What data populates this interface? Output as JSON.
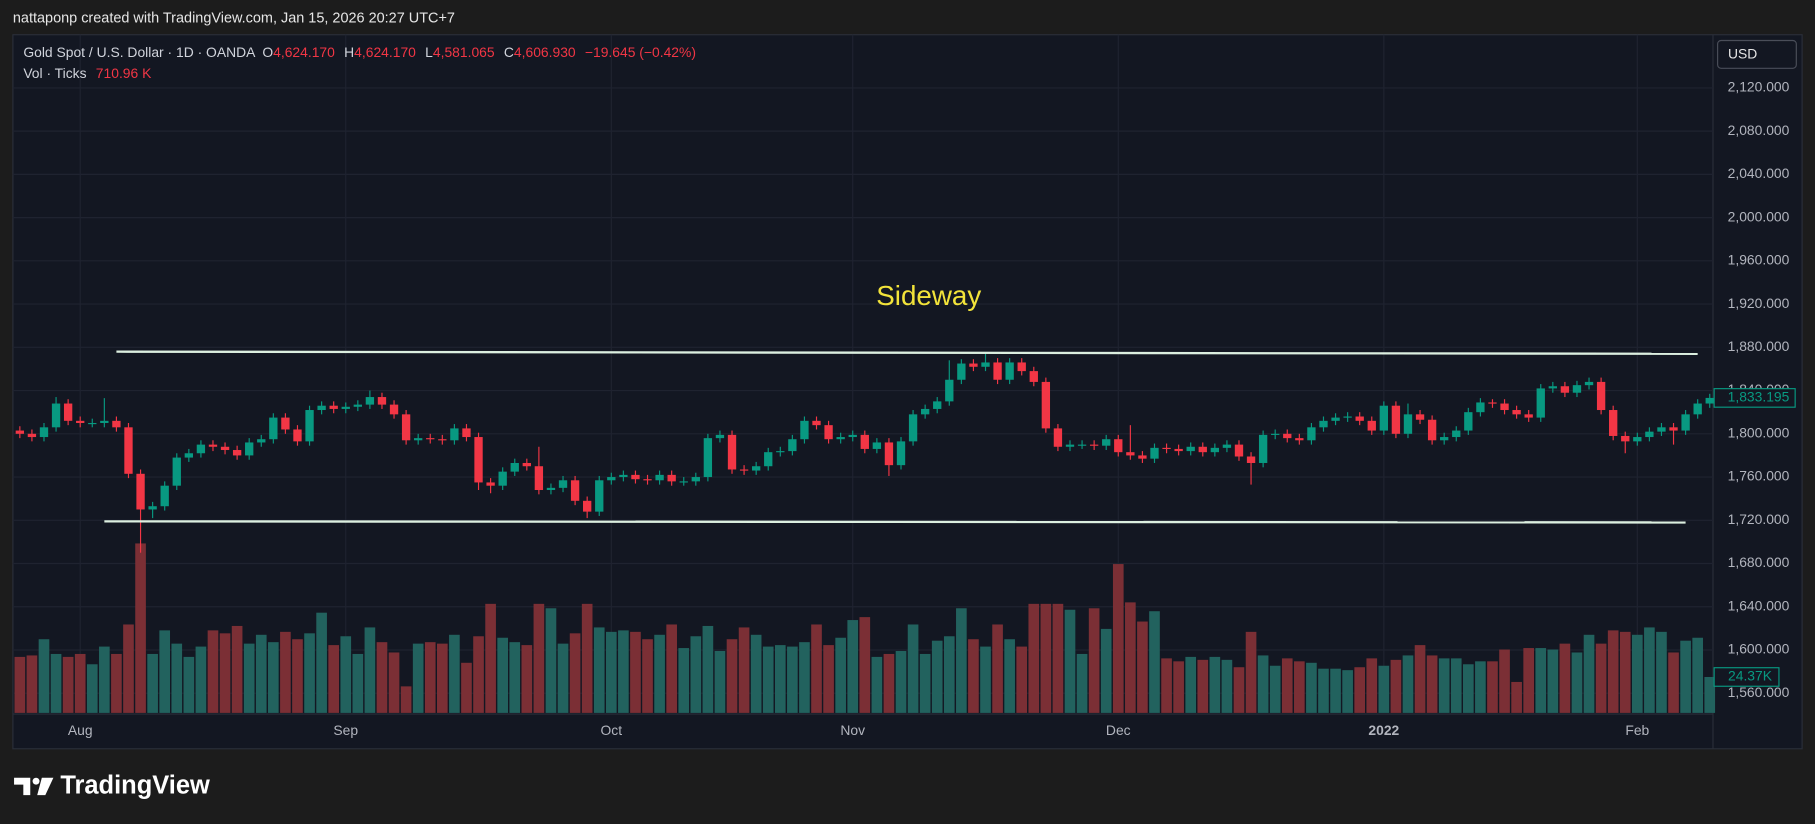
{
  "header": {
    "credit": "nattaponp created with TradingView.com, Jan 15, 2026 20:27 UTC+7"
  },
  "footer": {
    "brand": "TradingView"
  },
  "chart_data": {
    "type": "candlestick",
    "symbol": "Gold Spot / U.S. Dollar · 1D · OANDA",
    "ohlc_legend": {
      "o_key": "O",
      "o": "4,624.170",
      "h_key": "H",
      "h": "4,624.170",
      "l_key": "L",
      "l": "4,581.065",
      "c_key": "C",
      "c": "4,606.930",
      "change": "−19.645 (−0.42%)"
    },
    "volume_legend": {
      "name": "Vol · Ticks",
      "value": "710.96 K"
    },
    "currency": "USD",
    "annotation": {
      "text": "Sideway",
      "x": 75.3,
      "y": 1926,
      "color": "#f2e33a"
    },
    "drawings": [
      {
        "x": [
          8,
          139
        ],
        "y": [
          1876,
          1874
        ]
      },
      {
        "x": [
          7,
          138
        ],
        "y": [
          1719,
          1718
        ]
      }
    ],
    "drawing_color": "#dcefe0",
    "up_color": "#089981",
    "down_color": "#f23645",
    "volume_up_color": "#22625e",
    "volume_down_color": "#7b2f35",
    "grid": true,
    "ylim": [
      1541.8,
      2169.2
    ],
    "volume_ylim": [
      0,
      150
    ],
    "yticks": [
      {
        "value": 1560,
        "label": "1,560.000"
      },
      {
        "value": 1600,
        "label": "1,600.000"
      },
      {
        "value": 1640,
        "label": "1,640.000"
      },
      {
        "value": 1680,
        "label": "1,680.000"
      },
      {
        "value": 1720,
        "label": "1,720.000"
      },
      {
        "value": 1760,
        "label": "1,760.000"
      },
      {
        "value": 1800,
        "label": "1,800.000"
      },
      {
        "value": 1840,
        "label": "1,840.000"
      },
      {
        "value": 1880,
        "label": "1,880.000"
      },
      {
        "value": 1920,
        "label": "1,920.000"
      },
      {
        "value": 1960,
        "label": "1,960.000"
      },
      {
        "value": 2000,
        "label": "2,000.000"
      },
      {
        "value": 2040,
        "label": "2,040.000"
      },
      {
        "value": 2080,
        "label": "2,080.000"
      },
      {
        "value": 2120,
        "label": "2,120.000"
      }
    ],
    "xticks": [
      {
        "value": 5,
        "label": "Aug"
      },
      {
        "value": 27,
        "label": "Sep"
      },
      {
        "value": 49,
        "label": "Oct"
      },
      {
        "value": 69,
        "label": "Nov"
      },
      {
        "value": 91,
        "label": "Dec"
      },
      {
        "value": 113,
        "label": "2022"
      },
      {
        "value": 134,
        "label": "Feb"
      }
    ],
    "price_tag": "1,833.195",
    "volume_tag": "24.37K",
    "open": [
      1803,
      1800,
      1797,
      1806,
      1828,
      1812,
      1810,
      1810,
      1812,
      1806,
      1763,
      1730,
      1733,
      1752,
      1778,
      1782,
      1790,
      1788,
      1785,
      1780,
      1792,
      1795,
      1815,
      1804,
      1793,
      1822,
      1826,
      1823,
      1825,
      1827,
      1834,
      1827,
      1818,
      1794,
      1796,
      1795,
      1794,
      1805,
      1797,
      1755,
      1752,
      1765,
      1773,
      1770,
      1748,
      1750,
      1757,
      1738,
      1728,
      1757,
      1760,
      1762,
      1758,
      1757,
      1762,
      1756,
      1756,
      1760,
      1796,
      1799,
      1767,
      1766,
      1770,
      1783,
      1784,
      1795,
      1812,
      1808,
      1795,
      1797,
      1799,
      1786,
      1792,
      1771,
      1793,
      1818,
      1823,
      1830,
      1850,
      1865,
      1862,
      1866,
      1850,
      1866,
      1858,
      1848,
      1805,
      1788,
      1790,
      1790,
      1789,
      1795,
      1783,
      1780,
      1777,
      1787,
      1786,
      1784,
      1788,
      1783,
      1787,
      1790,
      1779,
      1773,
      1799,
      1800,
      1796,
      1794,
      1806,
      1812,
      1815,
      1816,
      1812,
      1803,
      1826,
      1800,
      1818,
      1813,
      1794,
      1797,
      1803,
      1820,
      1829,
      1828,
      1822,
      1818,
      1815,
      1842,
      1844,
      1838,
      1845,
      1848,
      1822,
      1798,
      1793,
      1797,
      1802,
      1806,
      1803,
      1818,
      1828
    ],
    "high": [
      1807,
      1804,
      1810,
      1834,
      1832,
      1816,
      1814,
      1833,
      1816,
      1810,
      1767,
      1737,
      1756,
      1782,
      1786,
      1794,
      1794,
      1792,
      1789,
      1796,
      1799,
      1819,
      1819,
      1808,
      1826,
      1830,
      1830,
      1829,
      1831,
      1840,
      1838,
      1831,
      1822,
      1800,
      1800,
      1799,
      1809,
      1809,
      1801,
      1759,
      1769,
      1777,
      1777,
      1788,
      1754,
      1761,
      1761,
      1742,
      1761,
      1764,
      1766,
      1766,
      1762,
      1766,
      1766,
      1760,
      1764,
      1800,
      1803,
      1803,
      1771,
      1774,
      1787,
      1788,
      1799,
      1816,
      1816,
      1812,
      1801,
      1803,
      1803,
      1796,
      1796,
      1797,
      1822,
      1827,
      1834,
      1868,
      1869,
      1869,
      1875,
      1870,
      1870,
      1870,
      1862,
      1852,
      1809,
      1794,
      1794,
      1794,
      1799,
      1799,
      1808,
      1784,
      1791,
      1791,
      1790,
      1792,
      1792,
      1791,
      1794,
      1794,
      1783,
      1803,
      1804,
      1804,
      1800,
      1810,
      1816,
      1819,
      1820,
      1820,
      1816,
      1830,
      1830,
      1828,
      1822,
      1817,
      1801,
      1807,
      1824,
      1833,
      1832,
      1832,
      1826,
      1822,
      1846,
      1848,
      1848,
      1849,
      1852,
      1852,
      1826,
      1802,
      1801,
      1806,
      1810,
      1810,
      1822,
      1832,
      1837
    ],
    "low": [
      1796,
      1793,
      1793,
      1802,
      1808,
      1806,
      1806,
      1806,
      1802,
      1759,
      1690,
      1722,
      1729,
      1748,
      1774,
      1778,
      1784,
      1781,
      1776,
      1776,
      1788,
      1791,
      1800,
      1789,
      1789,
      1818,
      1819,
      1819,
      1821,
      1823,
      1823,
      1814,
      1790,
      1790,
      1791,
      1790,
      1790,
      1793,
      1748,
      1745,
      1748,
      1761,
      1766,
      1744,
      1744,
      1746,
      1734,
      1722,
      1724,
      1753,
      1756,
      1754,
      1753,
      1753,
      1752,
      1752,
      1752,
      1756,
      1792,
      1763,
      1762,
      1762,
      1766,
      1779,
      1780,
      1791,
      1804,
      1791,
      1791,
      1793,
      1782,
      1782,
      1761,
      1767,
      1789,
      1814,
      1819,
      1826,
      1846,
      1858,
      1858,
      1846,
      1846,
      1854,
      1844,
      1801,
      1784,
      1784,
      1786,
      1785,
      1785,
      1779,
      1776,
      1773,
      1773,
      1782,
      1780,
      1780,
      1779,
      1779,
      1783,
      1775,
      1753,
      1769,
      1795,
      1792,
      1790,
      1790,
      1802,
      1808,
      1811,
      1808,
      1799,
      1799,
      1796,
      1796,
      1809,
      1790,
      1790,
      1793,
      1799,
      1816,
      1824,
      1818,
      1814,
      1811,
      1811,
      1838,
      1834,
      1834,
      1841,
      1818,
      1794,
      1782,
      1789,
      1793,
      1798,
      1790,
      1799,
      1814,
      1824
    ],
    "close": [
      1800,
      1797,
      1806,
      1828,
      1812,
      1810,
      1810,
      1812,
      1806,
      1763,
      1730,
      1733,
      1752,
      1778,
      1782,
      1790,
      1788,
      1785,
      1780,
      1792,
      1795,
      1815,
      1804,
      1793,
      1822,
      1826,
      1823,
      1825,
      1827,
      1834,
      1827,
      1818,
      1794,
      1796,
      1795,
      1794,
      1805,
      1797,
      1755,
      1752,
      1765,
      1773,
      1770,
      1748,
      1750,
      1757,
      1738,
      1728,
      1757,
      1760,
      1762,
      1758,
      1757,
      1762,
      1756,
      1756,
      1760,
      1796,
      1799,
      1767,
      1766,
      1770,
      1783,
      1784,
      1795,
      1812,
      1808,
      1795,
      1797,
      1799,
      1786,
      1792,
      1771,
      1793,
      1818,
      1823,
      1830,
      1850,
      1865,
      1862,
      1866,
      1850,
      1866,
      1858,
      1848,
      1805,
      1788,
      1790,
      1790,
      1789,
      1795,
      1783,
      1780,
      1777,
      1787,
      1786,
      1784,
      1788,
      1783,
      1787,
      1790,
      1779,
      1773,
      1799,
      1800,
      1796,
      1794,
      1806,
      1812,
      1815,
      1816,
      1812,
      1803,
      1826,
      1800,
      1818,
      1813,
      1794,
      1797,
      1803,
      1820,
      1829,
      1828,
      1822,
      1818,
      1815,
      1842,
      1844,
      1838,
      1845,
      1848,
      1822,
      1798,
      1793,
      1797,
      1802,
      1806,
      1803,
      1818,
      1828,
      1833.195
    ],
    "volume": [
      38,
      39,
      50,
      40,
      38,
      40,
      33,
      45,
      40,
      60,
      115,
      40,
      56,
      47,
      38,
      45,
      56,
      54,
      59,
      47,
      53,
      48,
      55,
      50,
      54,
      68,
      46,
      52,
      40,
      58,
      48,
      41,
      18,
      47,
      48,
      47,
      53,
      34,
      52,
      74,
      51,
      48,
      46,
      74,
      71,
      47,
      54,
      74,
      58,
      55,
      56,
      55,
      50,
      53,
      60,
      44,
      52,
      59,
      42,
      50,
      58,
      53,
      45,
      46,
      45,
      48,
      60,
      46,
      51,
      63,
      65,
      38,
      40,
      42,
      60,
      40,
      49,
      52,
      71,
      50,
      45,
      60,
      50,
      45,
      74,
      74,
      74,
      70,
      40,
      71,
      57,
      101,
      75,
      62,
      69,
      37,
      35,
      38,
      36,
      38,
      36,
      31,
      55,
      39,
      32,
      37,
      35,
      34,
      30,
      30,
      29,
      31,
      37,
      32,
      36,
      39,
      46,
      39,
      37,
      37,
      33,
      35,
      35,
      43,
      21,
      44,
      44,
      43,
      47,
      41,
      53,
      47,
      56,
      55,
      53,
      58,
      55,
      41,
      49,
      51,
      24.37
    ]
  }
}
